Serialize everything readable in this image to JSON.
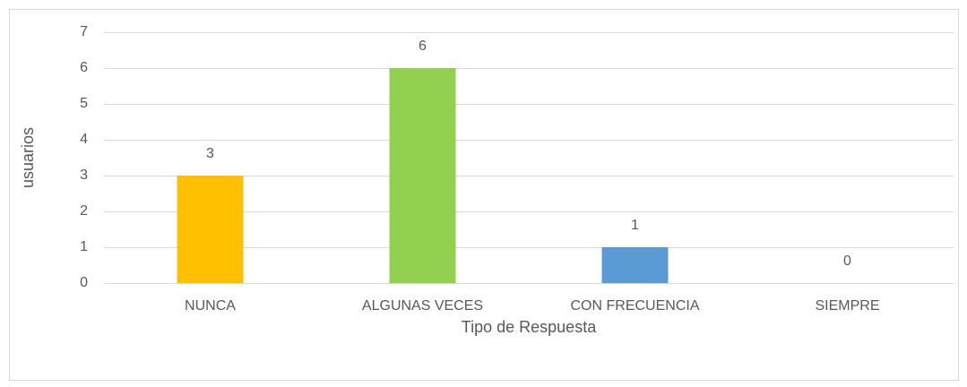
{
  "chart_data": {
    "type": "bar",
    "categories": [
      "NUNCA",
      "ALGUNAS VECES",
      "CON FRECUENCIA",
      "SIEMPRE"
    ],
    "values": [
      3,
      6,
      1,
      0
    ],
    "colors": [
      "#ffc000",
      "#92d050",
      "#5b9bd5",
      "#ed7d31"
    ],
    "xlabel": "Tipo de Respuesta",
    "ylabel": "usuarios",
    "ylim": [
      0,
      7
    ],
    "yticks": [
      0,
      1,
      2,
      3,
      4,
      5,
      6,
      7
    ],
    "grid": true
  }
}
